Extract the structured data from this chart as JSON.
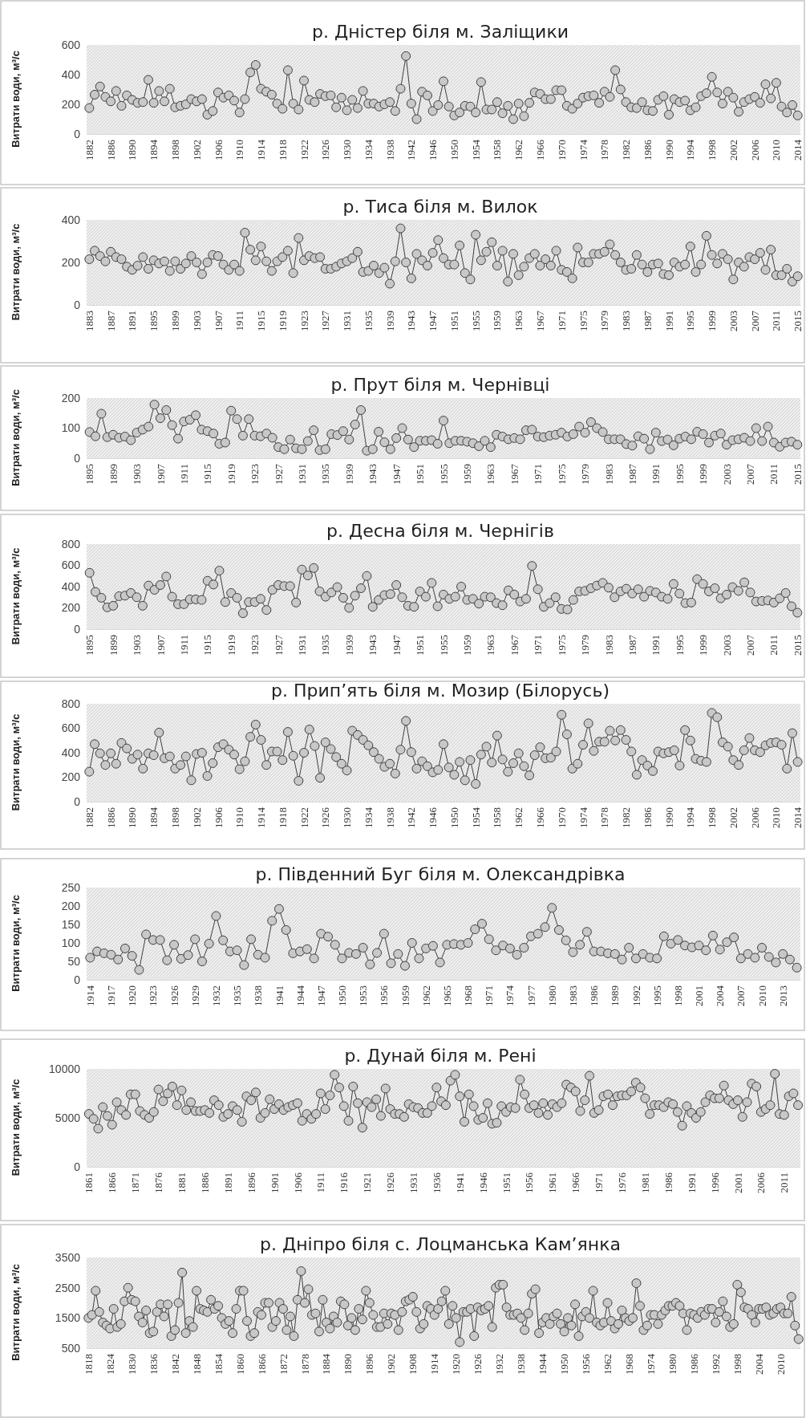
{
  "chart_data": [
    {
      "type": "line",
      "title": "р. Дністер біля м. Заліщики",
      "ylabel": "Витрати води, м³/с",
      "marker": "circle",
      "color": "#3f3f3f",
      "ylim": [
        0,
        600
      ],
      "yticks": [
        0,
        200,
        400,
        600
      ],
      "categories": [
        "1882",
        null,
        null,
        null,
        "1886",
        null,
        null,
        null,
        "1890",
        null,
        null,
        null,
        "1894",
        null,
        null,
        null,
        "1898",
        null,
        null,
        null,
        "1902",
        null,
        null,
        null,
        "1906",
        null,
        null,
        null,
        "1910",
        null,
        null,
        null,
        "1914",
        null,
        null,
        null,
        "1918",
        null,
        null,
        null,
        "1922",
        null,
        null,
        null,
        "1926",
        null,
        null,
        null,
        "1930",
        null,
        null,
        null,
        "1934",
        null,
        null,
        null,
        "1938",
        null,
        null,
        null,
        "1942",
        null,
        null,
        null,
        "1946",
        null,
        null,
        null,
        "1950",
        null,
        null,
        null,
        "1954",
        null,
        null,
        null,
        "1958",
        null,
        null,
        null,
        "1962",
        null,
        null,
        null,
        "1966",
        null,
        null,
        null,
        "1970",
        null,
        null,
        null,
        "1974",
        null,
        null,
        null,
        "1978",
        null,
        null,
        null,
        "1982",
        null,
        null,
        null,
        "1986",
        null,
        null,
        null,
        "1990",
        null,
        null,
        null,
        "1994",
        null,
        null,
        null,
        "1998",
        null,
        null,
        null,
        "2002",
        null,
        null,
        null,
        "2006",
        null,
        null,
        null,
        "2010",
        null,
        null,
        null,
        "2014"
      ],
      "values": [
        175,
        265,
        320,
        250,
        220,
        290,
        190,
        260,
        230,
        210,
        215,
        365,
        210,
        290,
        220,
        305,
        180,
        190,
        200,
        235,
        220,
        235,
        130,
        155,
        280,
        245,
        260,
        225,
        145,
        235,
        415,
        465,
        305,
        285,
        265,
        205,
        170,
        430,
        205,
        165,
        360,
        230,
        215,
        270,
        255,
        260,
        180,
        245,
        160,
        230,
        175,
        290,
        205,
        205,
        185,
        200,
        215,
        155,
        305,
        525,
        205,
        100,
        285,
        260,
        155,
        195,
        355,
        185,
        125,
        145,
        190,
        185,
        145,
        350,
        165,
        165,
        215,
        140,
        190,
        100,
        205,
        120,
        210,
        280,
        270,
        235,
        235,
        295,
        295,
        190,
        170,
        205,
        245,
        255,
        260,
        210,
        285,
        250,
        430,
        300,
        215,
        180,
        175,
        215,
        160,
        155,
        230,
        255,
        130,
        235,
        215,
        225,
        160,
        180,
        255,
        275,
        385,
        280,
        205,
        285,
        245,
        150,
        215,
        235,
        250,
        210,
        335,
        240,
        345,
        185,
        145,
        195,
        125
      ]
    },
    {
      "type": "line",
      "title": "р. Тиса біля м. Вилок",
      "ylabel": "Витрати води, м³/с",
      "marker": "circle",
      "color": "#3f3f3f",
      "ylim": [
        0,
        400
      ],
      "yticks": [
        0,
        200,
        400
      ],
      "categories": [
        "1883",
        null,
        null,
        null,
        "1887",
        null,
        null,
        null,
        "1891",
        null,
        null,
        null,
        "1895",
        null,
        null,
        null,
        "1899",
        null,
        null,
        null,
        "1903",
        null,
        null,
        null,
        "1907",
        null,
        null,
        null,
        "1911",
        null,
        null,
        null,
        "1915",
        null,
        null,
        null,
        "1919",
        null,
        null,
        null,
        "1923",
        null,
        null,
        null,
        "1927",
        null,
        null,
        null,
        "1931",
        null,
        null,
        null,
        "1935",
        null,
        null,
        null,
        "1939",
        null,
        null,
        null,
        "1943",
        null,
        null,
        null,
        "1947",
        null,
        null,
        null,
        "1951",
        null,
        null,
        null,
        "1955",
        null,
        null,
        null,
        "1959",
        null,
        null,
        null,
        "1963",
        null,
        null,
        null,
        "1967",
        null,
        null,
        null,
        "1971",
        null,
        null,
        null,
        "1975",
        null,
        null,
        null,
        "1979",
        null,
        null,
        null,
        "1983",
        null,
        null,
        null,
        "1987",
        null,
        null,
        null,
        "1991",
        null,
        null,
        null,
        "1995",
        null,
        null,
        null,
        "1999",
        null,
        null,
        null,
        "2003",
        null,
        null,
        null,
        "2007",
        null,
        null,
        null,
        "2011",
        null,
        null,
        null,
        "2015"
      ],
      "values": [
        215,
        255,
        230,
        205,
        250,
        225,
        215,
        180,
        165,
        185,
        225,
        170,
        210,
        195,
        205,
        160,
        205,
        170,
        195,
        230,
        200,
        145,
        200,
        235,
        230,
        190,
        165,
        190,
        160,
        340,
        260,
        210,
        275,
        205,
        160,
        205,
        225,
        255,
        150,
        315,
        210,
        230,
        220,
        225,
        170,
        170,
        180,
        195,
        205,
        220,
        250,
        155,
        160,
        185,
        150,
        175,
        100,
        205,
        360,
        200,
        125,
        240,
        210,
        185,
        245,
        305,
        220,
        190,
        190,
        280,
        150,
        120,
        330,
        210,
        250,
        295,
        185,
        255,
        110,
        240,
        140,
        180,
        220,
        240,
        185,
        215,
        185,
        255,
        165,
        155,
        125,
        270,
        200,
        200,
        240,
        240,
        250,
        285,
        235,
        200,
        165,
        170,
        235,
        190,
        155,
        190,
        195,
        145,
        140,
        200,
        180,
        190,
        275,
        155,
        190,
        325,
        235,
        195,
        240,
        215,
        120,
        200,
        180,
        225,
        215,
        245,
        165,
        260,
        140,
        140,
        170,
        110,
        135
      ]
    },
    {
      "type": "line",
      "title": "р. Прут біля м. Чернівці",
      "ylabel": "Витрати води, м³/с",
      "marker": "circle",
      "color": "#3f3f3f",
      "ylim": [
        0,
        200
      ],
      "yticks": [
        0,
        100,
        200
      ],
      "categories": [
        "1895",
        null,
        null,
        null,
        "1899",
        null,
        null,
        null,
        "1903",
        null,
        null,
        null,
        "1907",
        null,
        null,
        null,
        "1911",
        null,
        null,
        null,
        "1915",
        null,
        null,
        null,
        "1919",
        null,
        null,
        null,
        "1923",
        null,
        null,
        null,
        "1927",
        null,
        null,
        null,
        "1931",
        null,
        null,
        null,
        "1935",
        null,
        null,
        null,
        "1939",
        null,
        null,
        null,
        "1943",
        null,
        null,
        null,
        "1947",
        null,
        null,
        null,
        "1951",
        null,
        null,
        null,
        "1955",
        null,
        null,
        null,
        "1959",
        null,
        null,
        null,
        "1963",
        null,
        null,
        null,
        "1967",
        null,
        null,
        null,
        "1971",
        null,
        null,
        null,
        "1975",
        null,
        null,
        null,
        "1979",
        null,
        null,
        null,
        "1983",
        null,
        null,
        null,
        "1987",
        null,
        null,
        null,
        "1991",
        null,
        null,
        null,
        "1995",
        null,
        null,
        null,
        "1999",
        null,
        null,
        null,
        "2003",
        null,
        null,
        null,
        "2007",
        null,
        null,
        null,
        "2011",
        null,
        null,
        null,
        "2015"
      ],
      "values": [
        87,
        73,
        148,
        70,
        78,
        68,
        72,
        60,
        85,
        95,
        105,
        178,
        133,
        160,
        110,
        65,
        122,
        128,
        143,
        95,
        90,
        82,
        48,
        52,
        158,
        130,
        75,
        130,
        75,
        73,
        82,
        68,
        37,
        30,
        62,
        33,
        30,
        57,
        93,
        27,
        30,
        80,
        77,
        90,
        62,
        112,
        160,
        25,
        30,
        88,
        53,
        30,
        67,
        100,
        62,
        37,
        58,
        58,
        60,
        48,
        125,
        50,
        58,
        58,
        55,
        50,
        40,
        58,
        37,
        78,
        72,
        63,
        67,
        63,
        93,
        95,
        72,
        70,
        75,
        78,
        85,
        72,
        80,
        105,
        85,
        120,
        100,
        87,
        63,
        63,
        63,
        47,
        42,
        73,
        65,
        30,
        85,
        57,
        62,
        43,
        65,
        72,
        63,
        88,
        80,
        52,
        75,
        82,
        45,
        60,
        63,
        68,
        57,
        100,
        57,
        105,
        52,
        38,
        52,
        55,
        45
      ]
    },
    {
      "type": "line",
      "title": "р. Десна біля м. Чернігів",
      "ylabel": "Витрати води, м³/с",
      "marker": "circle",
      "color": "#3f3f3f",
      "ylim": [
        0,
        800
      ],
      "yticks": [
        0,
        200,
        400,
        600,
        800
      ],
      "categories": [
        "1895",
        null,
        null,
        null,
        "1899",
        null,
        null,
        null,
        "1903",
        null,
        null,
        null,
        "1907",
        null,
        null,
        null,
        "1911",
        null,
        null,
        null,
        "1915",
        null,
        null,
        null,
        "1919",
        null,
        null,
        null,
        "1923",
        null,
        null,
        null,
        "1927",
        null,
        null,
        null,
        "1931",
        null,
        null,
        null,
        "1935",
        null,
        null,
        null,
        "1939",
        null,
        null,
        null,
        "1943",
        null,
        null,
        null,
        "1947",
        null,
        null,
        null,
        "1951",
        null,
        null,
        null,
        "1955",
        null,
        null,
        null,
        "1959",
        null,
        null,
        null,
        "1963",
        null,
        null,
        null,
        "1967",
        null,
        null,
        null,
        "1971",
        null,
        null,
        null,
        "1975",
        null,
        null,
        null,
        "1979",
        null,
        null,
        null,
        "1983",
        null,
        null,
        null,
        "1987",
        null,
        null,
        null,
        "1991",
        null,
        null,
        null,
        "1995",
        null,
        null,
        null,
        "1999",
        null,
        null,
        null,
        "2003",
        null,
        null,
        null,
        "2007",
        null,
        null,
        null,
        "2011",
        null,
        null,
        null,
        "2015"
      ],
      "values": [
        530,
        350,
        295,
        205,
        220,
        310,
        315,
        340,
        300,
        220,
        410,
        370,
        415,
        495,
        305,
        235,
        235,
        280,
        280,
        275,
        455,
        420,
        550,
        255,
        340,
        295,
        150,
        255,
        255,
        285,
        180,
        370,
        415,
        405,
        405,
        250,
        560,
        505,
        575,
        355,
        305,
        345,
        395,
        295,
        200,
        315,
        385,
        500,
        210,
        275,
        320,
        330,
        415,
        300,
        220,
        210,
        355,
        305,
        435,
        215,
        325,
        285,
        305,
        400,
        275,
        285,
        240,
        305,
        300,
        245,
        225,
        365,
        325,
        260,
        285,
        595,
        375,
        210,
        245,
        300,
        190,
        185,
        275,
        355,
        360,
        385,
        410,
        435,
        390,
        300,
        355,
        380,
        335,
        375,
        305,
        360,
        345,
        305,
        285,
        425,
        335,
        245,
        250,
        470,
        425,
        355,
        385,
        290,
        325,
        395,
        360,
        440,
        345,
        260,
        265,
        270,
        250,
        290,
        340,
        215,
        155
      ]
    },
    {
      "type": "line",
      "title": "р. Прип’ять біля м. Мозир (Білорусь)",
      "ylabel": "Витрати води, м³/с",
      "marker": "circle",
      "color": "#3f3f3f",
      "ylim": [
        0,
        800
      ],
      "yticks": [
        0,
        200,
        400,
        600,
        800
      ],
      "categories": [
        "1882",
        null,
        null,
        null,
        "1886",
        null,
        null,
        null,
        "1890",
        null,
        null,
        null,
        "1894",
        null,
        null,
        null,
        "1898",
        null,
        null,
        null,
        "1902",
        null,
        null,
        null,
        "1906",
        null,
        null,
        null,
        "1910",
        null,
        null,
        null,
        "1914",
        null,
        null,
        null,
        "1918",
        null,
        null,
        null,
        "1922",
        null,
        null,
        null,
        "1926",
        null,
        null,
        null,
        "1930",
        null,
        null,
        null,
        "1934",
        null,
        null,
        null,
        "1938",
        null,
        null,
        null,
        "1942",
        null,
        null,
        null,
        "1946",
        null,
        null,
        null,
        "1950",
        null,
        null,
        null,
        "1954",
        null,
        null,
        null,
        "1958",
        null,
        null,
        null,
        "1962",
        null,
        null,
        null,
        "1966",
        null,
        null,
        null,
        "1970",
        null,
        null,
        null,
        "1974",
        null,
        null,
        null,
        "1978",
        null,
        null,
        null,
        "1982",
        null,
        null,
        null,
        "1986",
        null,
        null,
        null,
        "1990",
        null,
        null,
        null,
        "1994",
        null,
        null,
        null,
        "1998",
        null,
        null,
        null,
        "2002",
        null,
        null,
        null,
        "2006",
        null,
        null,
        null,
        "2010",
        null,
        null,
        null,
        "2014"
      ],
      "values": [
        245,
        470,
        395,
        300,
        395,
        310,
        480,
        435,
        350,
        385,
        270,
        395,
        380,
        565,
        355,
        370,
        270,
        300,
        370,
        175,
        390,
        400,
        210,
        315,
        445,
        470,
        425,
        385,
        265,
        330,
        530,
        630,
        505,
        300,
        410,
        410,
        340,
        570,
        375,
        170,
        400,
        590,
        455,
        195,
        485,
        430,
        365,
        310,
        255,
        580,
        545,
        505,
        460,
        405,
        350,
        285,
        310,
        230,
        425,
        660,
        405,
        270,
        330,
        290,
        240,
        260,
        470,
        280,
        220,
        325,
        175,
        340,
        145,
        385,
        450,
        320,
        540,
        345,
        245,
        315,
        395,
        290,
        215,
        380,
        445,
        355,
        360,
        410,
        710,
        550,
        270,
        310,
        465,
        640,
        415,
        490,
        490,
        580,
        500,
        585,
        505,
        410,
        220,
        340,
        295,
        250,
        410,
        395,
        405,
        420,
        295,
        585,
        500,
        350,
        335,
        325,
        725,
        690,
        485,
        450,
        340,
        300,
        420,
        520,
        420,
        405,
        460,
        480,
        485,
        465,
        270,
        560,
        325
      ]
    },
    {
      "type": "line",
      "title": "р. Південний Буг біля м. Олександрівка",
      "ylabel": "Витрати води, м³/с",
      "marker": "circle",
      "color": "#3f3f3f",
      "ylim": [
        0,
        250
      ],
      "yticks": [
        0,
        50,
        100,
        150,
        200,
        250
      ],
      "categories": [
        "1914",
        null,
        null,
        "1917",
        null,
        null,
        "1920",
        null,
        null,
        "1923",
        null,
        null,
        "1926",
        null,
        null,
        "1929",
        null,
        null,
        "1932",
        null,
        null,
        "1935",
        null,
        null,
        "1938",
        null,
        null,
        "1941",
        null,
        null,
        "1944",
        null,
        null,
        "1947",
        null,
        null,
        "1950",
        null,
        null,
        "1953",
        null,
        null,
        "1956",
        null,
        null,
        "1959",
        null,
        null,
        "1962",
        null,
        null,
        "1965",
        null,
        null,
        "1968",
        null,
        null,
        "1971",
        null,
        null,
        "1974",
        null,
        null,
        "1977",
        null,
        null,
        "1980",
        null,
        null,
        "1983",
        null,
        null,
        "1986",
        null,
        null,
        "1989",
        null,
        null,
        "1992",
        null,
        null,
        "1995",
        null,
        null,
        "1998",
        null,
        null,
        "2001",
        null,
        null,
        "2004",
        null,
        null,
        "2007",
        null,
        null,
        "2010",
        null,
        null,
        "2013",
        null,
        null
      ],
      "values": [
        60,
        77,
        72,
        68,
        55,
        85,
        65,
        27,
        123,
        108,
        108,
        53,
        95,
        57,
        67,
        110,
        50,
        98,
        173,
        107,
        77,
        80,
        40,
        110,
        68,
        60,
        160,
        192,
        135,
        72,
        77,
        83,
        58,
        125,
        117,
        95,
        58,
        73,
        70,
        87,
        42,
        73,
        125,
        45,
        70,
        38,
        100,
        58,
        85,
        92,
        47,
        95,
        97,
        95,
        100,
        137,
        152,
        110,
        80,
        93,
        85,
        68,
        87,
        118,
        125,
        143,
        195,
        135,
        107,
        75,
        95,
        130,
        77,
        77,
        72,
        70,
        55,
        87,
        58,
        70,
        60,
        58,
        118,
        98,
        108,
        93,
        88,
        93,
        80,
        120,
        82,
        102,
        115,
        58,
        70,
        60,
        87,
        62,
        47,
        70,
        55,
        33
      ]
    },
    {
      "type": "line",
      "title": "р. Дунай біля  м. Рені",
      "ylabel": "Витрати води, м³/с",
      "marker": "circle",
      "color": "#3f3f3f",
      "ylim": [
        0,
        10000
      ],
      "yticks": [
        0,
        5000,
        10000
      ],
      "categories": [
        "1861",
        null,
        null,
        null,
        null,
        "1866",
        null,
        null,
        null,
        null,
        "1871",
        null,
        null,
        null,
        null,
        "1876",
        null,
        null,
        null,
        null,
        "1881",
        null,
        null,
        null,
        null,
        "1886",
        null,
        null,
        null,
        null,
        "1891",
        null,
        null,
        null,
        null,
        "1896",
        null,
        null,
        null,
        null,
        "1901",
        null,
        null,
        null,
        null,
        "1906",
        null,
        null,
        null,
        null,
        "1911",
        null,
        null,
        null,
        null,
        "1916",
        null,
        null,
        null,
        null,
        "1921",
        null,
        null,
        null,
        null,
        "1926",
        null,
        null,
        null,
        null,
        "1931",
        null,
        null,
        null,
        null,
        "1936",
        null,
        null,
        null,
        null,
        "1941",
        null,
        null,
        null,
        null,
        "1946",
        null,
        null,
        null,
        null,
        "1951",
        null,
        null,
        null,
        null,
        "1956",
        null,
        null,
        null,
        null,
        "1961",
        null,
        null,
        null,
        null,
        "1966",
        null,
        null,
        null,
        null,
        "1971",
        null,
        null,
        null,
        null,
        "1976",
        null,
        null,
        null,
        null,
        "1981",
        null,
        null,
        null,
        null,
        "1986",
        null,
        null,
        null,
        null,
        "1991",
        null,
        null,
        null,
        null,
        "1996",
        null,
        null,
        null,
        null,
        "2001",
        null,
        null,
        null,
        null,
        "2006",
        null,
        null,
        null,
        null,
        "2011",
        null,
        null,
        null
      ],
      "values": [
        5400,
        4900,
        3900,
        6100,
        5200,
        4300,
        6600,
        5800,
        5300,
        7400,
        7400,
        5700,
        5300,
        5000,
        5600,
        7900,
        6700,
        7500,
        8200,
        6300,
        7800,
        5800,
        6600,
        5700,
        5700,
        5800,
        5500,
        6800,
        6300,
        5100,
        5400,
        6200,
        5800,
        4600,
        7200,
        6800,
        7600,
        5000,
        5500,
        6900,
        5900,
        6400,
        5800,
        6100,
        6300,
        6500,
        4700,
        5400,
        4900,
        5400,
        7500,
        5900,
        7300,
        9400,
        8100,
        6200,
        4700,
        8200,
        6500,
        4000,
        6600,
        6100,
        6900,
        5200,
        8000,
        5900,
        5400,
        5400,
        5100,
        6400,
        6100,
        6000,
        5500,
        5500,
        6200,
        8100,
        6700,
        6300,
        8800,
        9400,
        7200,
        4600,
        7400,
        6200,
        4800,
        5000,
        6500,
        4400,
        4500,
        6200,
        5600,
        6100,
        6000,
        8900,
        7400,
        6000,
        6300,
        5500,
        6500,
        5300,
        6400,
        6100,
        6500,
        8400,
        8100,
        7700,
        5700,
        6800,
        9300,
        5500,
        5800,
        7200,
        7400,
        6300,
        7200,
        7300,
        7300,
        7700,
        8600,
        8100,
        7000,
        5400,
        6300,
        6300,
        6100,
        6600,
        6400,
        5600,
        4200,
        6200,
        5500,
        5000,
        5600,
        6600,
        7300,
        7000,
        7000,
        8300,
        6800,
        6400,
        6800,
        5100,
        6600,
        8500,
        8200,
        5600,
        5900,
        6300,
        9500,
        5400,
        5300,
        7200,
        7500,
        6300
      ]
    },
    {
      "type": "line",
      "title": "р. Дніпро біля с. Лоцманська Кам’янка",
      "ylabel": "Витрати води, м³/с",
      "marker": "circle",
      "color": "#3f3f3f",
      "ylim": [
        500,
        3500
      ],
      "yticks": [
        500,
        1500,
        2500,
        3500
      ],
      "categories": [
        "1818",
        null,
        null,
        null,
        null,
        null,
        "1824",
        null,
        null,
        null,
        null,
        null,
        "1830",
        null,
        null,
        null,
        null,
        null,
        "1836",
        null,
        null,
        null,
        null,
        null,
        "1842",
        null,
        null,
        null,
        null,
        null,
        "1848",
        null,
        null,
        null,
        null,
        null,
        "1854",
        null,
        null,
        null,
        null,
        null,
        "1860",
        null,
        null,
        null,
        null,
        null,
        "1866",
        null,
        null,
        null,
        null,
        null,
        "1872",
        null,
        null,
        null,
        null,
        null,
        "1878",
        null,
        null,
        null,
        null,
        null,
        "1884",
        null,
        null,
        null,
        null,
        null,
        "1890",
        null,
        null,
        null,
        null,
        null,
        "1896",
        null,
        null,
        null,
        null,
        null,
        "1902",
        null,
        null,
        null,
        null,
        null,
        "1908",
        null,
        null,
        null,
        null,
        null,
        "1914",
        null,
        null,
        null,
        null,
        null,
        "1920",
        null,
        null,
        null,
        null,
        null,
        "1926",
        null,
        null,
        null,
        null,
        null,
        "1932",
        null,
        null,
        null,
        null,
        null,
        "1938",
        null,
        null,
        null,
        null,
        null,
        "1944",
        null,
        null,
        null,
        null,
        null,
        "1950",
        null,
        null,
        null,
        null,
        null,
        "1956",
        null,
        null,
        null,
        null,
        null,
        "1962",
        null,
        null,
        null,
        null,
        null,
        "1968",
        null,
        null,
        null,
        null,
        null,
        "1974",
        null,
        null,
        null,
        null,
        null,
        "1980",
        null,
        null,
        null,
        null,
        null,
        "1986",
        null,
        null,
        null,
        null,
        null,
        "1992",
        null,
        null,
        null,
        null,
        null,
        "1998",
        null,
        null,
        null,
        null,
        null,
        "2004",
        null,
        null,
        null,
        null,
        null,
        "2010",
        null,
        null,
        null,
        null,
        null
      ],
      "values": [
        1500,
        1600,
        2400,
        1700,
        1350,
        1250,
        1150,
        1800,
        1200,
        1300,
        2050,
        2500,
        2100,
        2050,
        1550,
        1350,
        1750,
        1000,
        1050,
        1700,
        1950,
        1550,
        1950,
        900,
        1100,
        2000,
        3000,
        1000,
        1400,
        1200,
        2400,
        1800,
        1750,
        1700,
        2100,
        1800,
        1900,
        1500,
        1300,
        1400,
        1000,
        1800,
        2400,
        2400,
        1400,
        900,
        1000,
        1700,
        1600,
        2000,
        2000,
        1200,
        1400,
        2000,
        1800,
        1100,
        1550,
        900,
        2100,
        3050,
        2000,
        2450,
        1600,
        1650,
        1050,
        2100,
        1350,
        1150,
        1550,
        1350,
        2050,
        1950,
        1250,
        1500,
        1100,
        1800,
        1450,
        2400,
        2000,
        1600,
        1200,
        1200,
        1650,
        1300,
        1650,
        1600,
        1100,
        1700,
        2050,
        2100,
        2200,
        1700,
        1150,
        1300,
        1900,
        1800,
        1600,
        1800,
        2050,
        2400,
        1300,
        1900,
        1500,
        700,
        1700,
        1700,
        1800,
        900,
        1850,
        1750,
        1800,
        1900,
        1200,
        2500,
        2600,
        2600,
        1850,
        1600,
        1600,
        1650,
        1500,
        1100,
        1650,
        2300,
        2450,
        1000,
        1350,
        1500,
        1300,
        1550,
        1650,
        1300,
        1050,
        1500,
        1250,
        1950,
        900,
        1550,
        1700,
        1500,
        2400,
        1350,
        1250,
        1350,
        2000,
        1400,
        1150,
        1300,
        1750,
        1500,
        1400,
        1500,
        2650,
        1900,
        1100,
        1250,
        1600,
        1600,
        1300,
        1600,
        1750,
        1900,
        1900,
        2000,
        1900,
        1650,
        1100,
        1650,
        1600,
        1500,
        1700,
        1600,
        1800,
        1800,
        1350,
        1700,
        2050,
        1550,
        1200,
        1300,
        2600,
        2350,
        1850,
        1800,
        1600,
        1350,
        1800,
        1800,
        1850,
        1600,
        1650,
        1800,
        1850,
        1650,
        1650,
        2200,
        1250,
        800
      ]
    }
  ]
}
